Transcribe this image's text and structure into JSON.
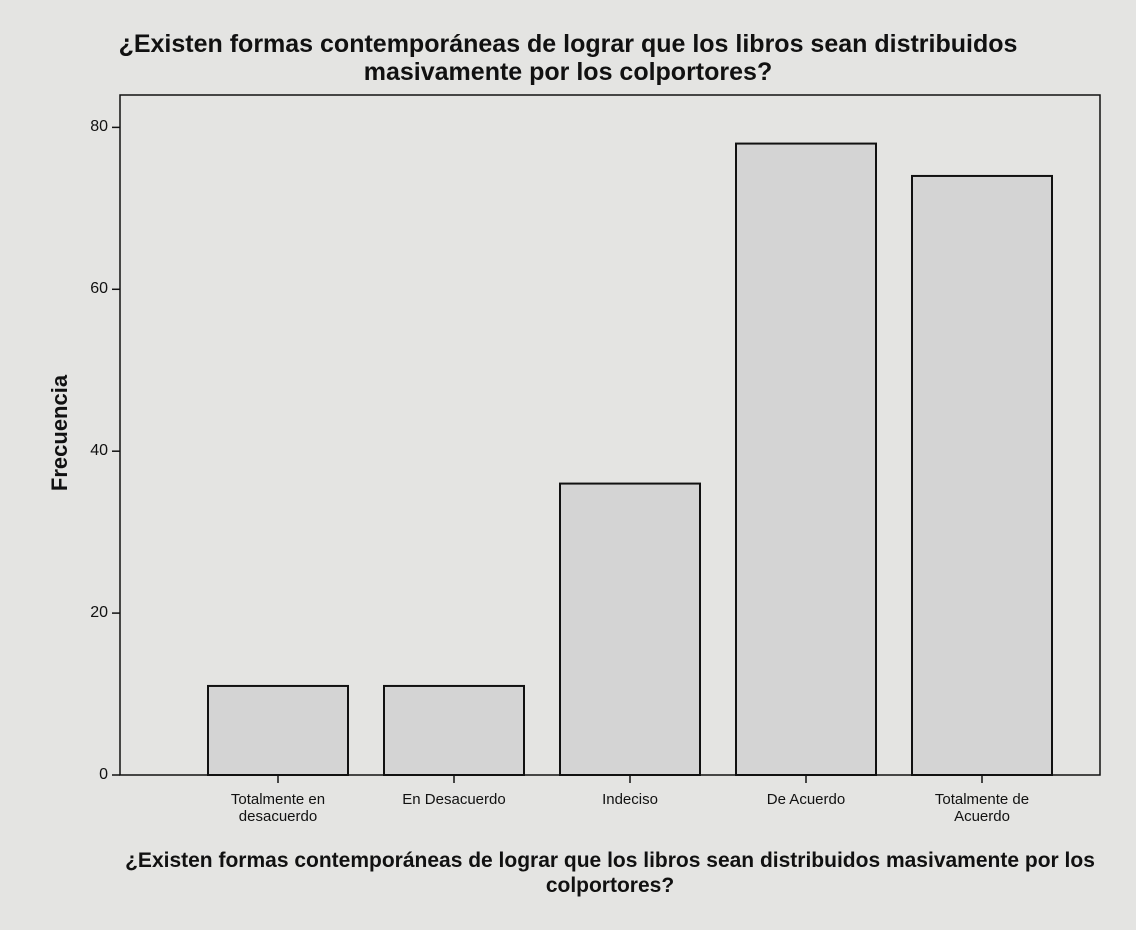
{
  "chart_data": {
    "type": "bar",
    "title": "¿Existen formas contemporáneas de lograr que los libros sean distribuidos masivamente por los colportores?",
    "x_label": "¿Existen formas contemporáneas de lograr que los libros sean distribuidos masivamente por los colportores?",
    "y_label": "Frecuencia",
    "categories": [
      "Totalmente en desacuerdo",
      "En Desacuerdo",
      "Indeciso",
      "De Acuerdo",
      "Totalmente de Acuerdo"
    ],
    "values": [
      11,
      11,
      36,
      78,
      74
    ],
    "color": "#d4d4d4",
    "ylim": [
      0,
      84
    ],
    "yticks": [
      0,
      20,
      40,
      60,
      80
    ],
    "grid": false
  }
}
